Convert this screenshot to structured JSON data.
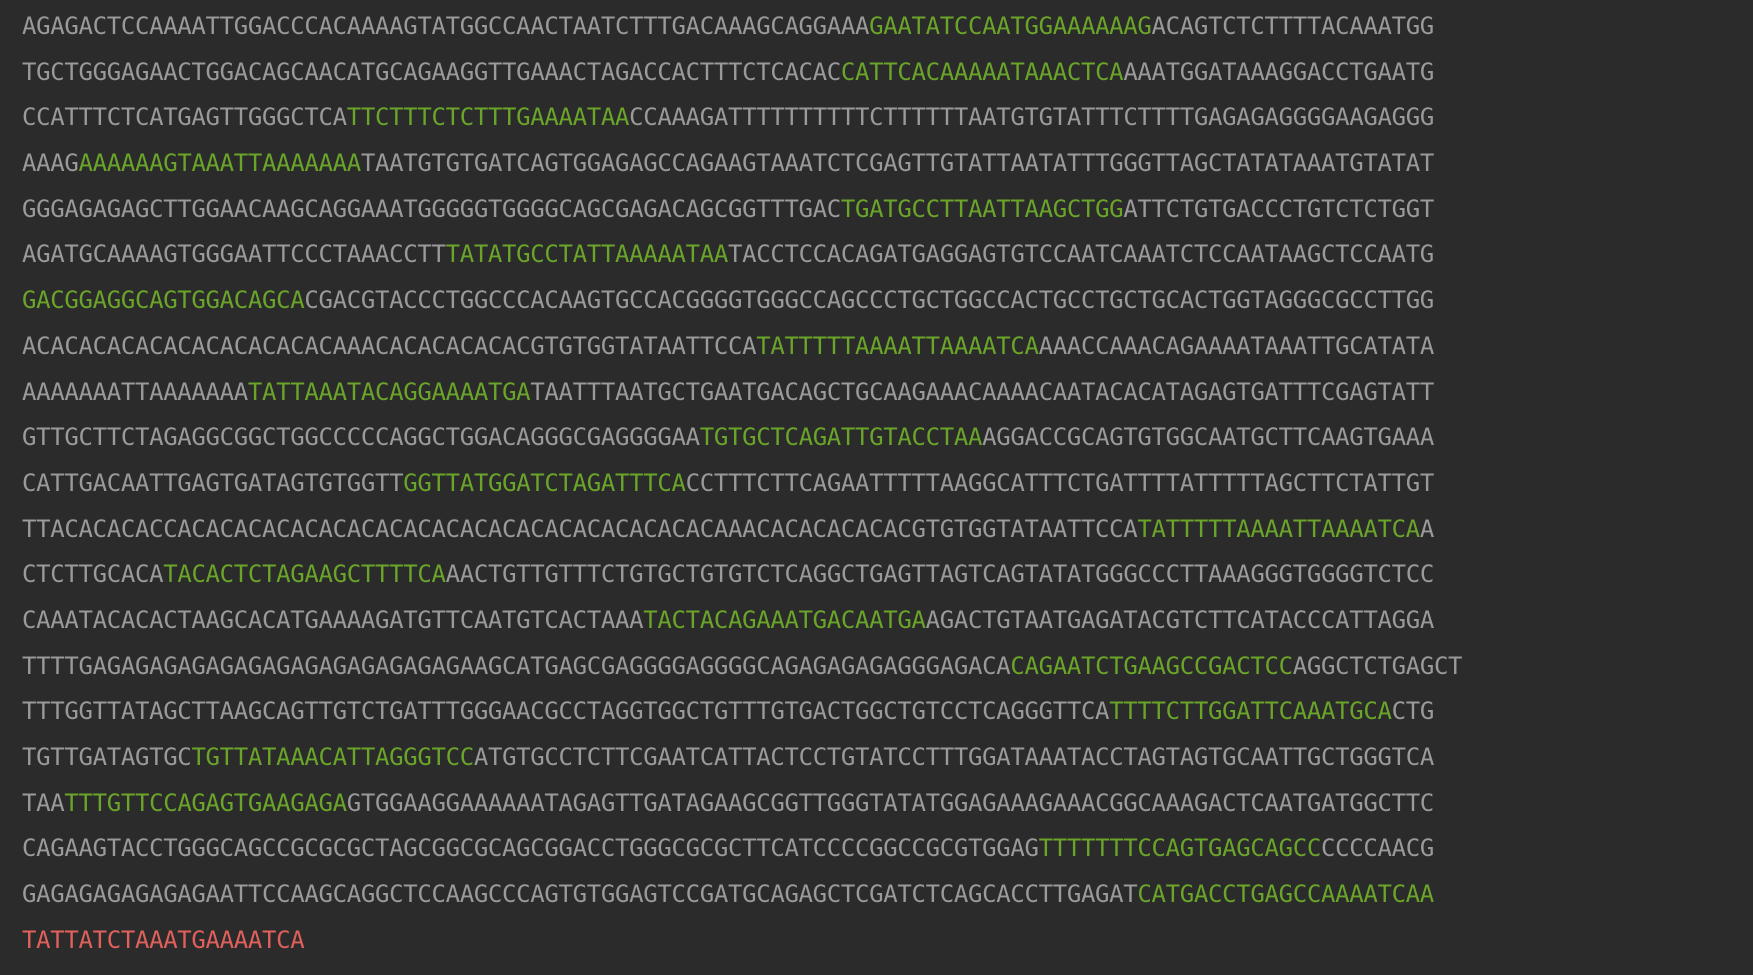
{
  "colors": {
    "background": "#2b2b2b",
    "plain": "#9a9a9a",
    "primer": "#6aa52a",
    "query": "#e0605c"
  },
  "sequence_lines": [
    [
      {
        "text": "AGAGACTCCAAAATTGGACCCACAAAAGTATGGCCAACTAATCTTTGACAAAGCAGGAAA",
        "kind": "plain"
      },
      {
        "text": "GAATATCCAATGGAAAAAAG",
        "kind": "primer"
      },
      {
        "text": "ACAGTCTCTTTTACAAATGG",
        "kind": "plain"
      }
    ],
    [
      {
        "text": "TGCTGGGAGAACTGGACAGCAACATGCAGAAGGTTGAAACTAGACCACTTTCTCACAC",
        "kind": "plain"
      },
      {
        "text": "CATTCACAAAAATAAACTCA",
        "kind": "primer"
      },
      {
        "text": "AAATGGATAAAGGACCTGAATG",
        "kind": "plain"
      }
    ],
    [
      {
        "text": "CCATTTCTCATGAGTTGGGCTCA",
        "kind": "plain"
      },
      {
        "text": "TTCTTTCTCTTTGAAAATAA",
        "kind": "primer"
      },
      {
        "text": "CCAAAGATTTTTTTTTTCTTTTTTAATGTGTATTTCTTTTGAGAGAGGGGAAGAGGG",
        "kind": "plain"
      }
    ],
    [
      {
        "text": "AAAG",
        "kind": "plain"
      },
      {
        "text": "AAAAAAGTAAATTAAAAAAA",
        "kind": "primer"
      },
      {
        "text": "TAATGTGTGATCAGTGGAGAGCCAGAAGTAAATCTCGAGTTGTATTAATATTTGGGTTAGCTATATAAATGTATAT",
        "kind": "plain"
      }
    ],
    [
      {
        "text": "GGGAGAGAGCTTGGAACAAGCAGGAAATGGGGGTGGGGCAGCGAGACAGCGGTTTGAC",
        "kind": "plain"
      },
      {
        "text": "TGATGCCTTAATTAAGCTGG",
        "kind": "primer"
      },
      {
        "text": "ATTCTGTGACCCTGTCTCTGGT",
        "kind": "plain"
      }
    ],
    [
      {
        "text": "AGATGCAAAAGTGGGAATTCCCTAAACCTT",
        "kind": "plain"
      },
      {
        "text": "TATATGCCTATTAAAAATAA",
        "kind": "primer"
      },
      {
        "text": "TACCTCCACAGATGAGGAGTGTCCAATCAAATCTCCAATAAGCTCCAATG",
        "kind": "plain"
      }
    ],
    [
      {
        "text": "GACGGAGGCAGTGGACAGCA",
        "kind": "primer"
      },
      {
        "text": "CGACGTACCCTGGCCCACAAGTGCCACGGGGTGGGCCAGCCCTGCTGGCCACTGCCTGCTGCACTGGTAGGGCGCCTTGG",
        "kind": "plain"
      }
    ],
    [
      {
        "text": "ACACACACACACACACACACACAAACACACACACACGTGTGGTATAATTCCA",
        "kind": "plain"
      },
      {
        "text": "TATTTTTAAAATTAAAATCA",
        "kind": "primer"
      },
      {
        "text": "AAACCAAACAGAAAATAAATTGCATATA",
        "kind": "plain"
      }
    ],
    [
      {
        "text": "AAAAAAATTAAAAAAA",
        "kind": "plain"
      },
      {
        "text": "TATTAAATACAGGAAAATGA",
        "kind": "primer"
      },
      {
        "text": "TAATTTAATGCTGAATGACAGCTGCAAGAAACAAAACAATACACATAGAGTGATTTCGAGTATT",
        "kind": "plain"
      }
    ],
    [
      {
        "text": "GTTGCTTCTAGAGGCGGCTGGCCCCCAGGCTGGACAGGGCGAGGGGAA",
        "kind": "plain"
      },
      {
        "text": "TGTGCTCAGATTGTACCTAA",
        "kind": "primer"
      },
      {
        "text": "AGGACCGCAGTGTGGCAATGCTTCAAGTGAAA",
        "kind": "plain"
      }
    ],
    [
      {
        "text": "CATTGACAATTGAGTGATAGTGTGGTT",
        "kind": "plain"
      },
      {
        "text": "GGTTATGGATCTAGATTTCA",
        "kind": "primer"
      },
      {
        "text": "CCTTTCTTCAGAATTTTTAAGGCATTTCTGATTTTATTTTTAGCTTCTATTGT",
        "kind": "plain"
      }
    ],
    [
      {
        "text": "TTACACACACCACACACACACACACACACACACACACACACACACACACAAACACACACACACGTGTGGTATAATTCCA",
        "kind": "plain"
      },
      {
        "text": "TATTTTTAAAATTAAAATCA",
        "kind": "primer"
      },
      {
        "text": "A",
        "kind": "plain"
      }
    ],
    [
      {
        "text": "CTCTTGCACA",
        "kind": "plain"
      },
      {
        "text": "TACACTCTAGAAGCTTTTCA",
        "kind": "primer"
      },
      {
        "text": "AACTGTTGTTTCTGTGCTGTGTCTCAGGCTGAGTTAGTCAGTATATGGGCCCTTAAAGGGTGGGGTCTCC",
        "kind": "plain"
      }
    ],
    [
      {
        "text": "CAAATACACACTAAGCACATGAAAAGATGTTCAATGTCACTAAA",
        "kind": "plain"
      },
      {
        "text": "TACTACAGAAATGACAATGA",
        "kind": "primer"
      },
      {
        "text": "AGACTGTAATGAGATACGTCTTCATACCCATTAGGA",
        "kind": "plain"
      }
    ],
    [
      {
        "text": "TTTTGAGAGAGAGAGAGAGAGAGAGAGAGAGAAGCATGAGCGAGGGGAGGGGCAGAGAGAGAGGGAGACA",
        "kind": "plain"
      },
      {
        "text": "CAGAATCTGAAGCCGACTCC",
        "kind": "primer"
      },
      {
        "text": "AGGCTCTGAGCT",
        "kind": "plain"
      }
    ],
    [
      {
        "text": "TTTGGTTATAGCTTAAGCAGTTGTCTGATTTGGGAACGCCTAGGTGGCTGTTTGTGACTGGCTGTCCTCAGGGTTCA",
        "kind": "plain"
      },
      {
        "text": "TTTTCTTGGATTCAAATGCA",
        "kind": "primer"
      },
      {
        "text": "CTG",
        "kind": "plain"
      }
    ],
    [
      {
        "text": "TGTTGATAGTGC",
        "kind": "plain"
      },
      {
        "text": "TGTTATAAACATTAGGGTCC",
        "kind": "primer"
      },
      {
        "text": "ATGTGCCTCTTCGAATCATTACTCCTGTATCCTTTGGATAAATACCTAGTAGTGCAATTGCTGGGTCA",
        "kind": "plain"
      }
    ],
    [
      {
        "text": "TAA",
        "kind": "plain"
      },
      {
        "text": "TTTGTTCCAGAGTGAAGAGA",
        "kind": "primer"
      },
      {
        "text": "GTGGAAGGAAAAAATAGAGTTGATAGAAGCGGTTGGGTATATGGAGAAAGAAACGGCAAAGACTCAATGATGGCTTC",
        "kind": "plain"
      }
    ],
    [
      {
        "text": "CAGAAGTACCTGGGCAGCCGCGCGCTAGCGGCGCAGCGGACCTGGGCGCGCTTCATCCCCGGCCGCGTGGAG",
        "kind": "plain"
      },
      {
        "text": "TTTTTTTCCAGTGAGCAGCC",
        "kind": "primer"
      },
      {
        "text": "CCCCAACG",
        "kind": "plain"
      }
    ],
    [
      {
        "text": "GAGAGAGAGAGAGAATTCCAAGCAGGCTCCAAGCCCAGTGTGGAGTCCGATGCAGAGCTCGATCTCAGCACCTTGAGAT",
        "kind": "plain"
      },
      {
        "text": "CATGACCTGAGCCAAAATCAA",
        "kind": "primer"
      }
    ],
    [
      {
        "text": "TATTATCTAAATGAAAATCA",
        "kind": "query"
      }
    ]
  ]
}
